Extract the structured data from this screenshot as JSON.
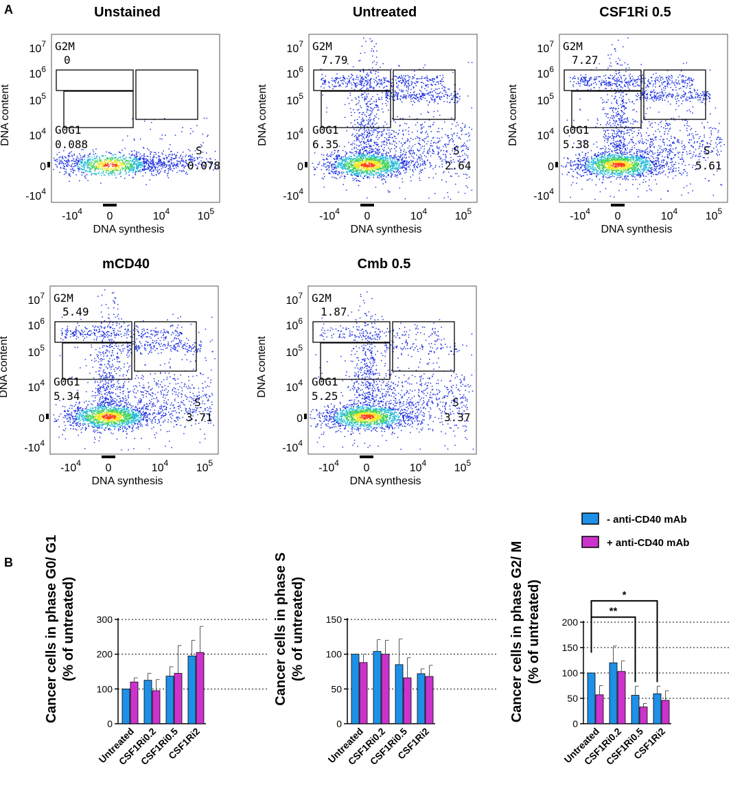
{
  "panel_labels": {
    "a": "A",
    "b": "B"
  },
  "flow": {
    "xlabel": "DNA synthesis",
    "ylabel": "DNA content",
    "xticks": [
      {
        "base": "-10",
        "exp": "4"
      },
      {
        "base": "0",
        "exp": ""
      },
      {
        "base": "10",
        "exp": "4"
      },
      {
        "base": "10",
        "exp": "5"
      }
    ],
    "yticks": [
      {
        "base": "10",
        "exp": "7"
      },
      {
        "base": "10",
        "exp": "6"
      },
      {
        "base": "10",
        "exp": "5"
      },
      {
        "base": "10",
        "exp": "4"
      },
      {
        "base": "0",
        "exp": ""
      },
      {
        "base": "-10",
        "exp": "4"
      }
    ],
    "gate_names": {
      "g2m": "G2M",
      "g0g1": "G0G1",
      "s": "S"
    },
    "plots": [
      {
        "title": "Unstained",
        "g2m": "0",
        "g0g1": "0.088",
        "s": "0.078"
      },
      {
        "title": "Untreated",
        "g2m": "7.79",
        "g0g1": "6.35",
        "s": "2.64"
      },
      {
        "title": "CSF1Ri 0.5",
        "g2m": "7.27",
        "g0g1": "5.38",
        "s": "5.61"
      },
      {
        "title": "mCD40",
        "g2m": "5.49",
        "g0g1": "5.34",
        "s": "3.71"
      },
      {
        "title": "Cmb 0.5",
        "g2m": "1.87",
        "g0g1": "5.25",
        "s": "3.37"
      }
    ]
  },
  "chart_data": [
    {
      "type": "bar",
      "ylabel_line1": "Cancer cells in phase G0/ G1",
      "ylabel_line2": "(% of untreated)",
      "categories": [
        "Untreated",
        "CSF1Ri0.2",
        "CSF1Ri0.5",
        "CSF1Ri2"
      ],
      "ylim": [
        0,
        300
      ],
      "yticks": [
        0,
        100,
        200,
        300
      ],
      "series": [
        {
          "name": "- anti-CD40 mAb",
          "color": "#1e90e8",
          "values": [
            100,
            125,
            137,
            195
          ],
          "errors": [
            0,
            20,
            27,
            45
          ]
        },
        {
          "name": "+ anti-CD40 mAb",
          "color": "#cc33cc",
          "values": [
            120,
            95,
            145,
            205
          ],
          "errors": [
            12,
            32,
            80,
            75
          ]
        }
      ],
      "significance": []
    },
    {
      "type": "bar",
      "ylabel_line1": "Cancer cells in phase S",
      "ylabel_line2": "(% of untreated)",
      "categories": [
        "Untreated",
        "CSF1Ri0.2",
        "CSF1Ri0.5",
        "CSF1Ri2"
      ],
      "ylim": [
        0,
        150
      ],
      "yticks": [
        0,
        50,
        100,
        150
      ],
      "series": [
        {
          "name": "- anti-CD40 mAb",
          "color": "#1e90e8",
          "values": [
            100,
            104,
            85,
            72
          ],
          "errors": [
            0,
            17,
            37,
            7
          ]
        },
        {
          "name": "+ anti-CD40 mAb",
          "color": "#cc33cc",
          "values": [
            88,
            100,
            66,
            68
          ],
          "errors": [
            12,
            20,
            29,
            16
          ]
        }
      ],
      "significance": []
    },
    {
      "type": "bar",
      "ylabel_line1": "Cancer cells in phase G2/ M",
      "ylabel_line2": "(% of untreated)",
      "categories": [
        "Untreated",
        "CSF1Ri0.2",
        "CSF1Ri0.5",
        "CSF1Ri2"
      ],
      "ylim": [
        0,
        200
      ],
      "yticks": [
        0,
        50,
        100,
        150,
        200
      ],
      "series": [
        {
          "name": "- anti-CD40 mAb",
          "color": "#1e90e8",
          "values": [
            100,
            120,
            56,
            59
          ],
          "errors": [
            0,
            33,
            18,
            15
          ]
        },
        {
          "name": "+ anti-CD40 mAb",
          "color": "#cc33cc",
          "values": [
            57,
            103,
            33,
            46
          ],
          "errors": [
            18,
            21,
            7,
            19
          ]
        }
      ],
      "significance": [
        {
          "label": "*",
          "from": 0,
          "to": 3,
          "level": 242
        },
        {
          "label": "**",
          "from": 0,
          "to": 2,
          "level": 210
        }
      ]
    }
  ],
  "legend": {
    "items": [
      {
        "label": "- anti-CD40 mAb",
        "color": "#1e90e8"
      },
      {
        "label": "+ anti-CD40 mAb",
        "color": "#cc33cc"
      }
    ]
  }
}
